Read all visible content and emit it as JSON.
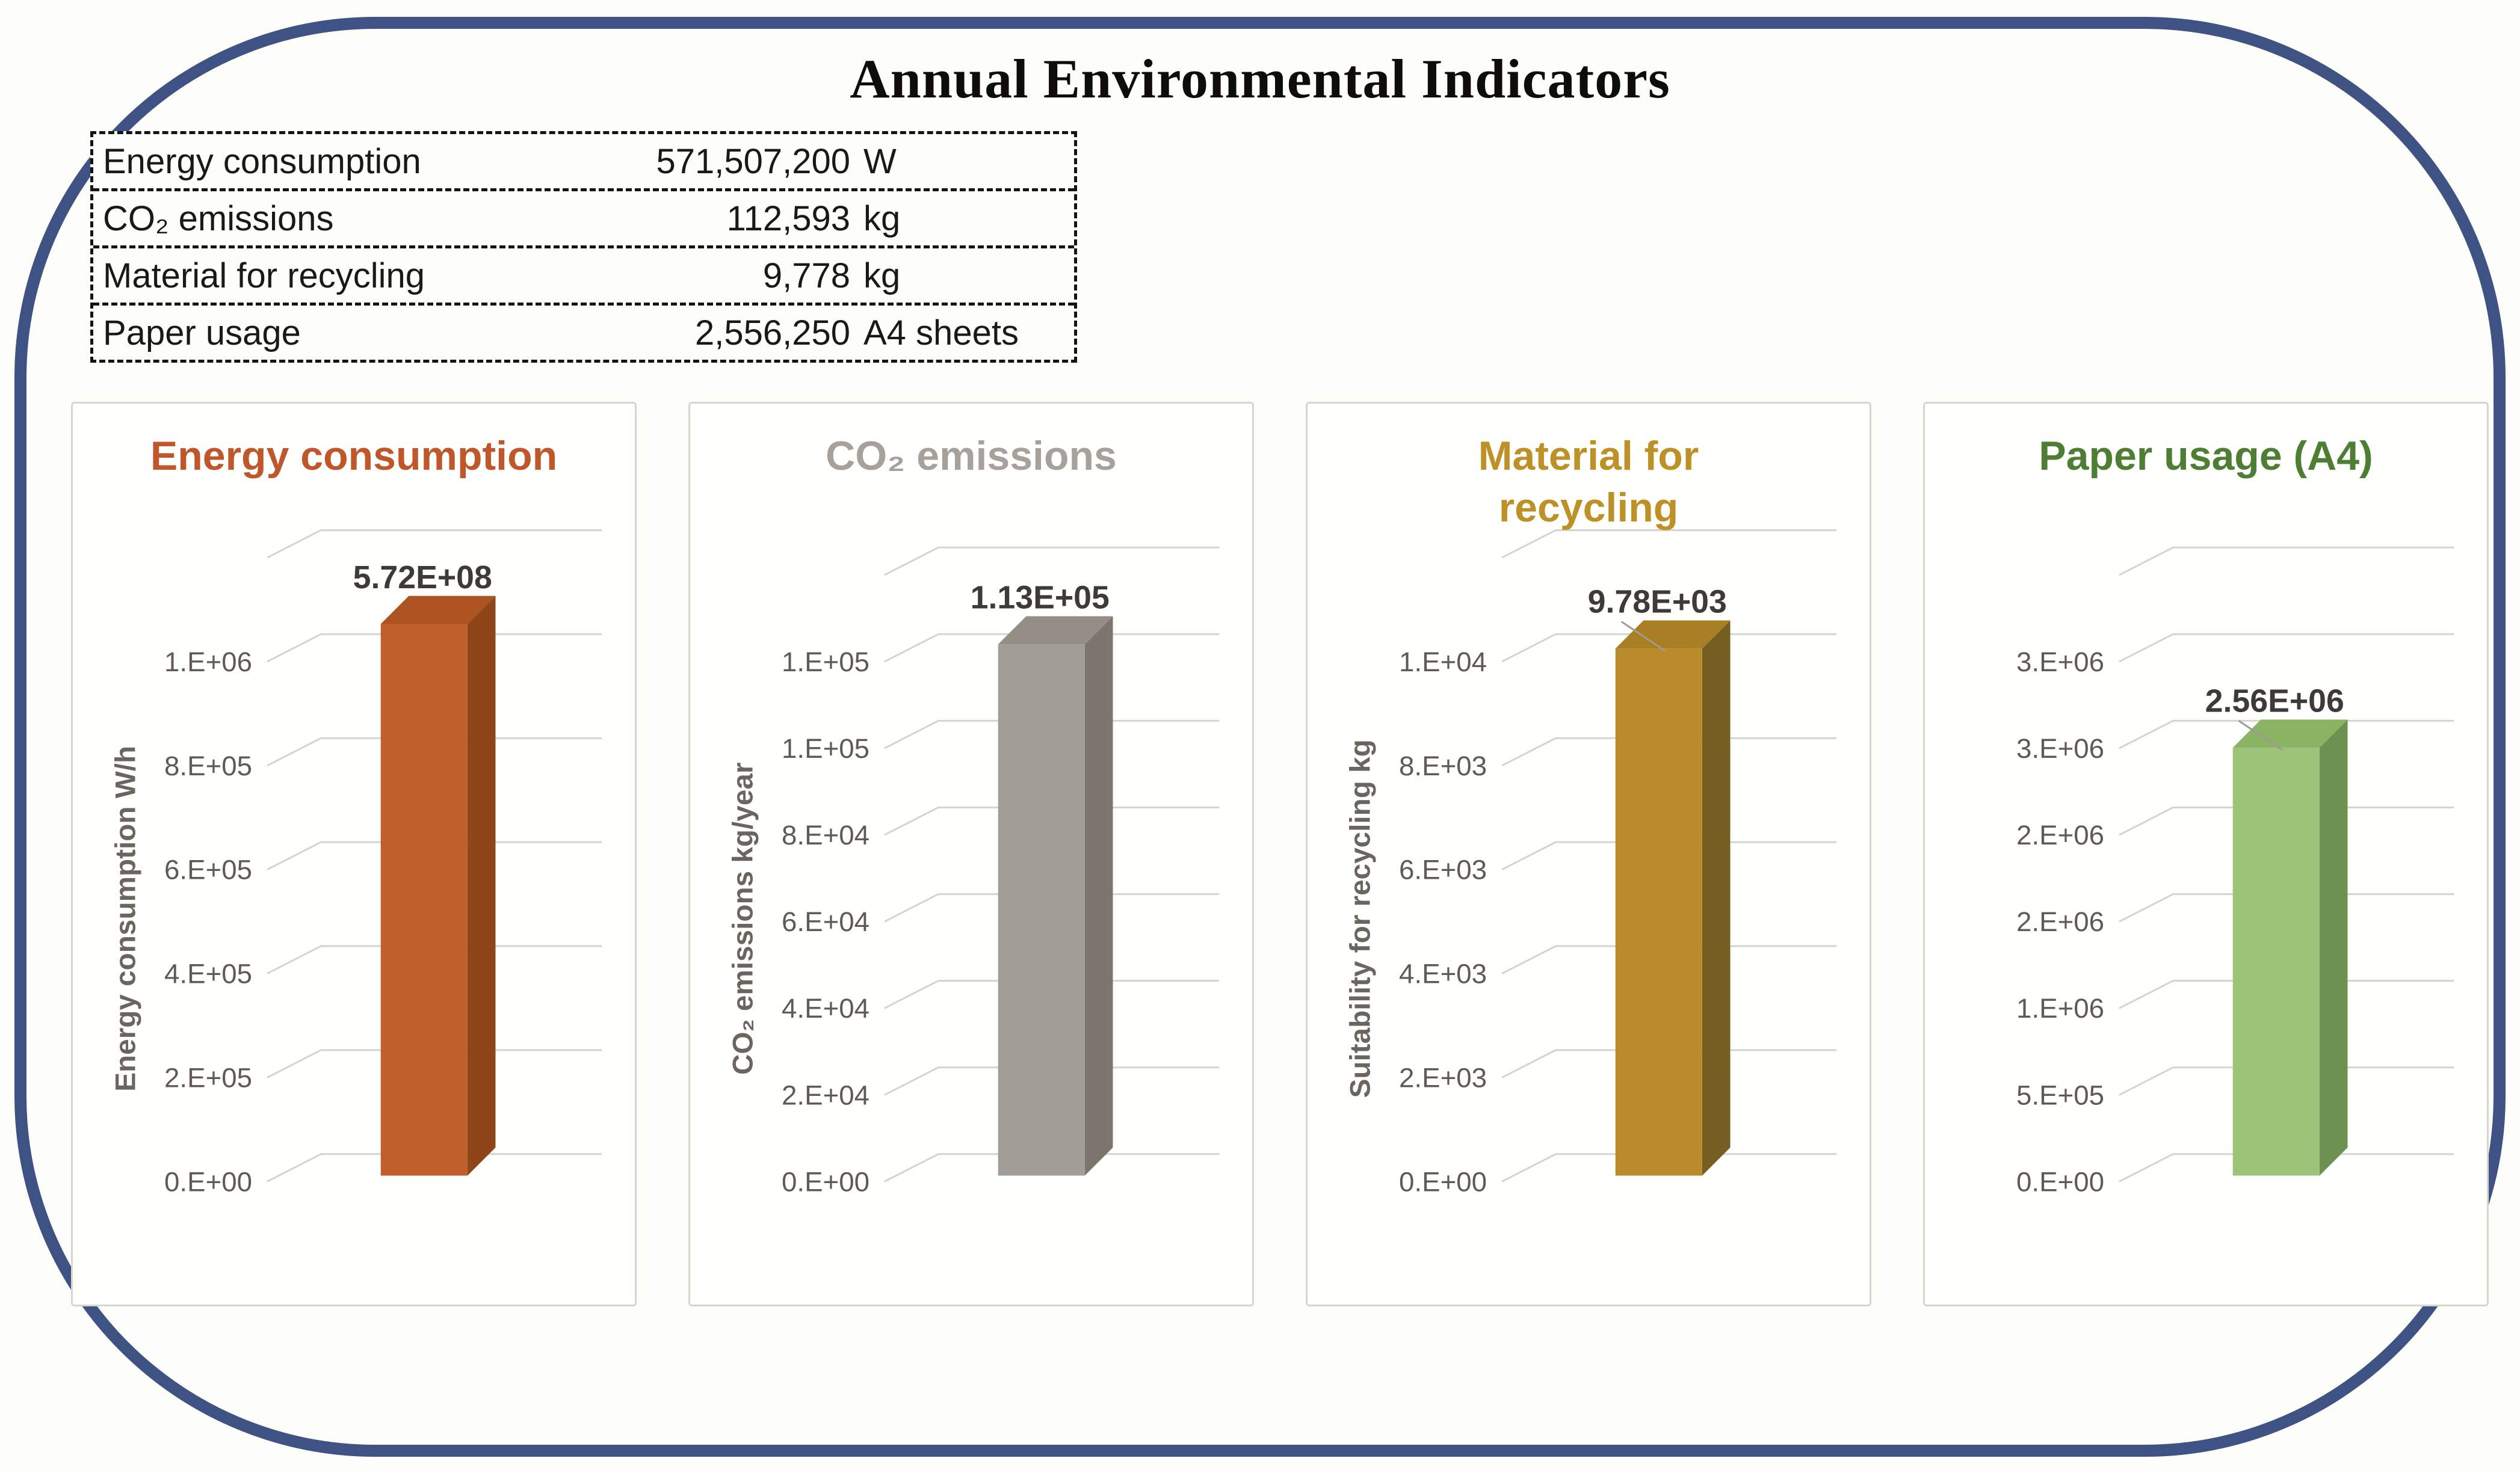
{
  "header": {
    "title": "Annual Environmental Indicators"
  },
  "summary_table": {
    "rows": [
      {
        "label": "Energy consumption",
        "value": "571,507,200",
        "unit": "W"
      },
      {
        "label": "CO₂ emissions",
        "value": "112,593",
        "unit": "kg"
      },
      {
        "label": "Material for recycling",
        "value": "9,778",
        "unit": "kg"
      },
      {
        "label": "Paper usage",
        "value": "2,556,250",
        "unit": "A4 sheets"
      }
    ]
  },
  "colors": {
    "frame": "#3E5383",
    "panel_border": "#D9D5CD",
    "grid": "#D8D3CC",
    "tick_text": "#5F5A55",
    "axis_title_text": "#6B6560",
    "value_label_text": "#3E3A36",
    "table_text": "#1B1918",
    "leader_line": "#A09A93"
  },
  "chart_data": [
    {
      "type": "bar",
      "title_lines": [
        "Energy consumption"
      ],
      "title_color": "#C0572B",
      "y_axis_title": "Energy consumption W/h",
      "ticks_top_to_bottom": [
        "1.E+06",
        "8.E+05",
        "6.E+05",
        "4.E+05",
        "2.E+05",
        "0.E+00"
      ],
      "ylim": [
        0,
        1200000
      ],
      "value": 571507200,
      "value_label": "5.72E+08",
      "bar_frac": 0.85,
      "bar_colors": {
        "front": "#C05F2B",
        "top": "#AD5420",
        "side": "#8E4619"
      },
      "leader": false
    },
    {
      "type": "bar",
      "title_lines": [
        "CO₂ emissions"
      ],
      "title_color": "#A7A19B",
      "y_axis_title": "CO₂ emissions kg/year",
      "ticks_top_to_bottom": [
        "1.E+05",
        "1.E+05",
        "8.E+04",
        "6.E+04",
        "4.E+04",
        "2.E+04",
        "0.E+00"
      ],
      "ylim": [
        0,
        120000
      ],
      "value": 112593,
      "value_label": "1.13E+05",
      "bar_frac": 0.84,
      "bar_colors": {
        "front": "#A39D97",
        "top": "#948E87",
        "side": "#7C756D"
      },
      "leader": false
    },
    {
      "type": "bar",
      "title_lines": [
        "Material for",
        "recycling"
      ],
      "title_color": "#BD9126",
      "y_axis_title": "Suitability for recycling kg",
      "ticks_top_to_bottom": [
        "1.E+04",
        "8.E+03",
        "6.E+03",
        "4.E+03",
        "2.E+03",
        "0.E+00"
      ],
      "ylim": [
        0,
        12000
      ],
      "value": 9778,
      "value_label": "9.78E+03",
      "bar_frac": 0.81,
      "bar_colors": {
        "front": "#B98B2C",
        "top": "#A87F22",
        "side": "#765D22"
      },
      "leader": true
    },
    {
      "type": "bar",
      "title_lines": [
        "Paper usage (A4)"
      ],
      "title_color": "#4E7E33",
      "y_axis_title": "",
      "ticks_top_to_bottom": [
        "3.E+06",
        "3.E+06",
        "2.E+06",
        "2.E+06",
        "1.E+06",
        "5.E+05",
        "0.E+00"
      ],
      "ylim": [
        0,
        3500000
      ],
      "value": 2556250,
      "value_label": "2.56E+06",
      "bar_frac": 0.67,
      "bar_colors": {
        "front": "#9CC377",
        "top": "#8AB463",
        "side": "#6D9150"
      },
      "leader": true
    }
  ]
}
